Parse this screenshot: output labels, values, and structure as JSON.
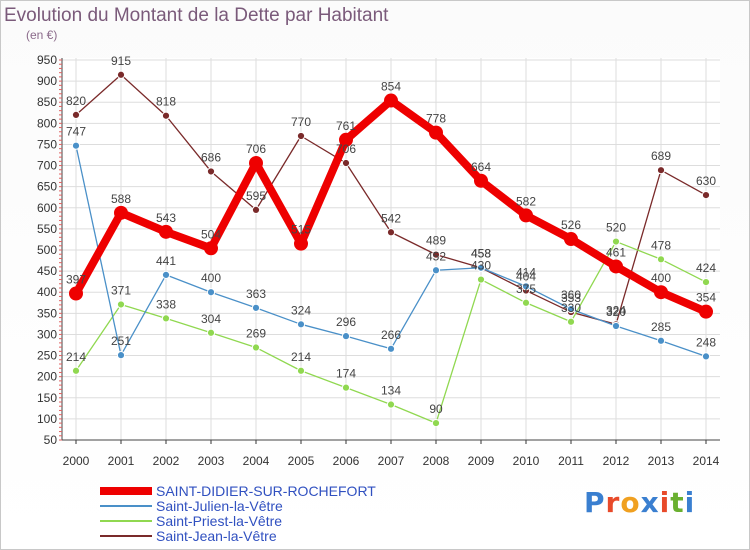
{
  "header": {
    "title": "Evolution du Montant de la Dette par Habitant",
    "subtitle": "(en €)"
  },
  "logo": {
    "text": "Proxiti",
    "letter_colors": [
      "#3a7fd0",
      "#e84a2a",
      "#f0a020",
      "#3a7fd0",
      "#e84a2a",
      "#6ab030",
      "#3a7fd0"
    ]
  },
  "chart_data": {
    "type": "line",
    "title": "Evolution du Montant de la Dette par Habitant",
    "ylabel": "(en €)",
    "xlabel": "",
    "x": [
      "2000",
      "2001",
      "2002",
      "2003",
      "2004",
      "2005",
      "2006",
      "2007",
      "2008",
      "2009",
      "2010",
      "2011",
      "2012",
      "2013",
      "2014"
    ],
    "ylim": [
      50,
      950
    ],
    "yticks": [
      50,
      100,
      150,
      200,
      250,
      300,
      350,
      400,
      450,
      500,
      550,
      600,
      650,
      700,
      750,
      800,
      850,
      900,
      950
    ],
    "grid": true,
    "legend_position": "bottom-left",
    "series": [
      {
        "name": "SAINT-DIDIER-SUR-ROCHEFORT",
        "color": "#ee0000",
        "values": [
          397,
          588,
          543,
          504,
          706,
          515,
          761,
          854,
          778,
          664,
          582,
          526,
          461,
          400,
          354
        ]
      },
      {
        "name": "Saint-Julien-la-Vêtre",
        "color": "#4a90c8",
        "values": [
          747,
          251,
          441,
          400,
          363,
          324,
          296,
          266,
          452,
          458,
          414,
          360,
          320,
          285,
          248
        ]
      },
      {
        "name": "Saint-Priest-la-Vêtre",
        "color": "#90d850",
        "values": [
          214,
          371,
          338,
          304,
          269,
          214,
          174,
          134,
          90,
          430,
          375,
          330,
          520,
          478,
          424
        ]
      },
      {
        "name": "Saint-Jean-la-Vêtre",
        "color": "#7a2a2a",
        "values": [
          820,
          915,
          818,
          686,
          595,
          770,
          706,
          542,
          489,
          458,
          404,
          353,
          324,
          689,
          630
        ]
      }
    ]
  }
}
